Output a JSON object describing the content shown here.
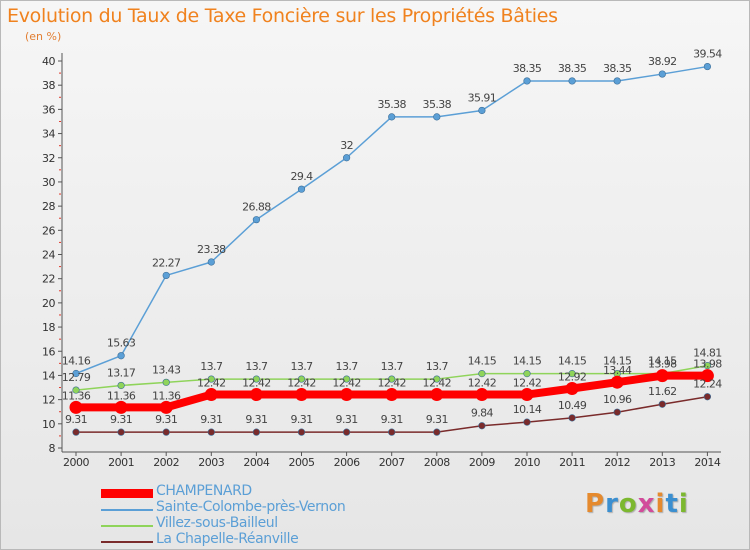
{
  "header": {
    "title": "Evolution du Taux de Taxe Foncière sur les Propriétés Bâties",
    "subtitle": "(en %)"
  },
  "logo": {
    "text": "Proxiti",
    "colors": [
      "#e58a2e",
      "#3b8fd0",
      "#7cb82f",
      "#d24b9b",
      "#e58a2e",
      "#3b8fd0",
      "#7cb82f"
    ]
  },
  "chart_data": {
    "type": "line",
    "title": "Evolution du Taux de Taxe Foncière sur les Propriétés Bâties",
    "ylabel": "(en %)",
    "xlabel": "",
    "ylim": [
      8,
      40
    ],
    "yticks": [
      8,
      10,
      12,
      14,
      16,
      18,
      20,
      22,
      24,
      26,
      28,
      30,
      32,
      34,
      36,
      38,
      40
    ],
    "grid": false,
    "legend_position": "bottom-left",
    "categories": [
      "2000",
      "2001",
      "2002",
      "2003",
      "2004",
      "2005",
      "2006",
      "2007",
      "2008",
      "2009",
      "2010",
      "2011",
      "2012",
      "2013",
      "2014"
    ],
    "series": [
      {
        "name": "CHAMPENARD",
        "color": "#ff0000",
        "values": [
          11.36,
          11.36,
          11.36,
          12.42,
          12.42,
          12.42,
          12.42,
          12.42,
          12.42,
          12.42,
          12.42,
          12.92,
          13.44,
          13.98,
          13.98
        ],
        "labels": [
          "11.36",
          "11.36",
          "11.36",
          "12.42",
          "12.42",
          "12.42",
          "12.42",
          "12.42",
          "12.42",
          "12.42",
          "12.42",
          "12.92",
          "13.44",
          "13.98",
          "13.98"
        ]
      },
      {
        "name": "Sainte-Colombe-près-Vernon",
        "color": "#5b9fd6",
        "values": [
          14.16,
          15.63,
          22.27,
          23.38,
          26.88,
          29.4,
          32,
          35.38,
          35.38,
          35.91,
          38.35,
          38.35,
          38.35,
          38.92,
          39.54
        ],
        "labels": [
          "14.16",
          "15.63",
          "22.27",
          "23.38",
          "26.88",
          "29.4",
          "32",
          "35.38",
          "35.38",
          "35.91",
          "38.35",
          "38.35",
          "38.35",
          "38.92",
          "39.54"
        ]
      },
      {
        "name": "Villez-sous-Bailleul",
        "color": "#8fd45a",
        "values": [
          12.79,
          13.17,
          13.43,
          13.7,
          13.7,
          13.7,
          13.7,
          13.7,
          13.7,
          14.15,
          14.15,
          14.15,
          14.15,
          14.15,
          14.81
        ],
        "labels": [
          "12.79",
          "13.17",
          "13.43",
          "13.7",
          "13.7",
          "13.7",
          "13.7",
          "13.7",
          "13.7",
          "14.15",
          "14.15",
          "14.15",
          "14.15",
          "14.15",
          "14.81"
        ]
      },
      {
        "name": "La Chapelle-Réanville",
        "color": "#7a2b2b",
        "values": [
          9.31,
          9.31,
          9.31,
          9.31,
          9.31,
          9.31,
          9.31,
          9.31,
          9.31,
          9.84,
          10.14,
          10.49,
          10.96,
          11.62,
          12.24
        ],
        "labels": [
          "9.31",
          "9.31",
          "9.31",
          "9.31",
          "9.31",
          "9.31",
          "9.31",
          "9.31",
          "9.31",
          "9.84",
          "10.14",
          "10.49",
          "10.96",
          "11.62",
          "12.24"
        ]
      }
    ]
  }
}
